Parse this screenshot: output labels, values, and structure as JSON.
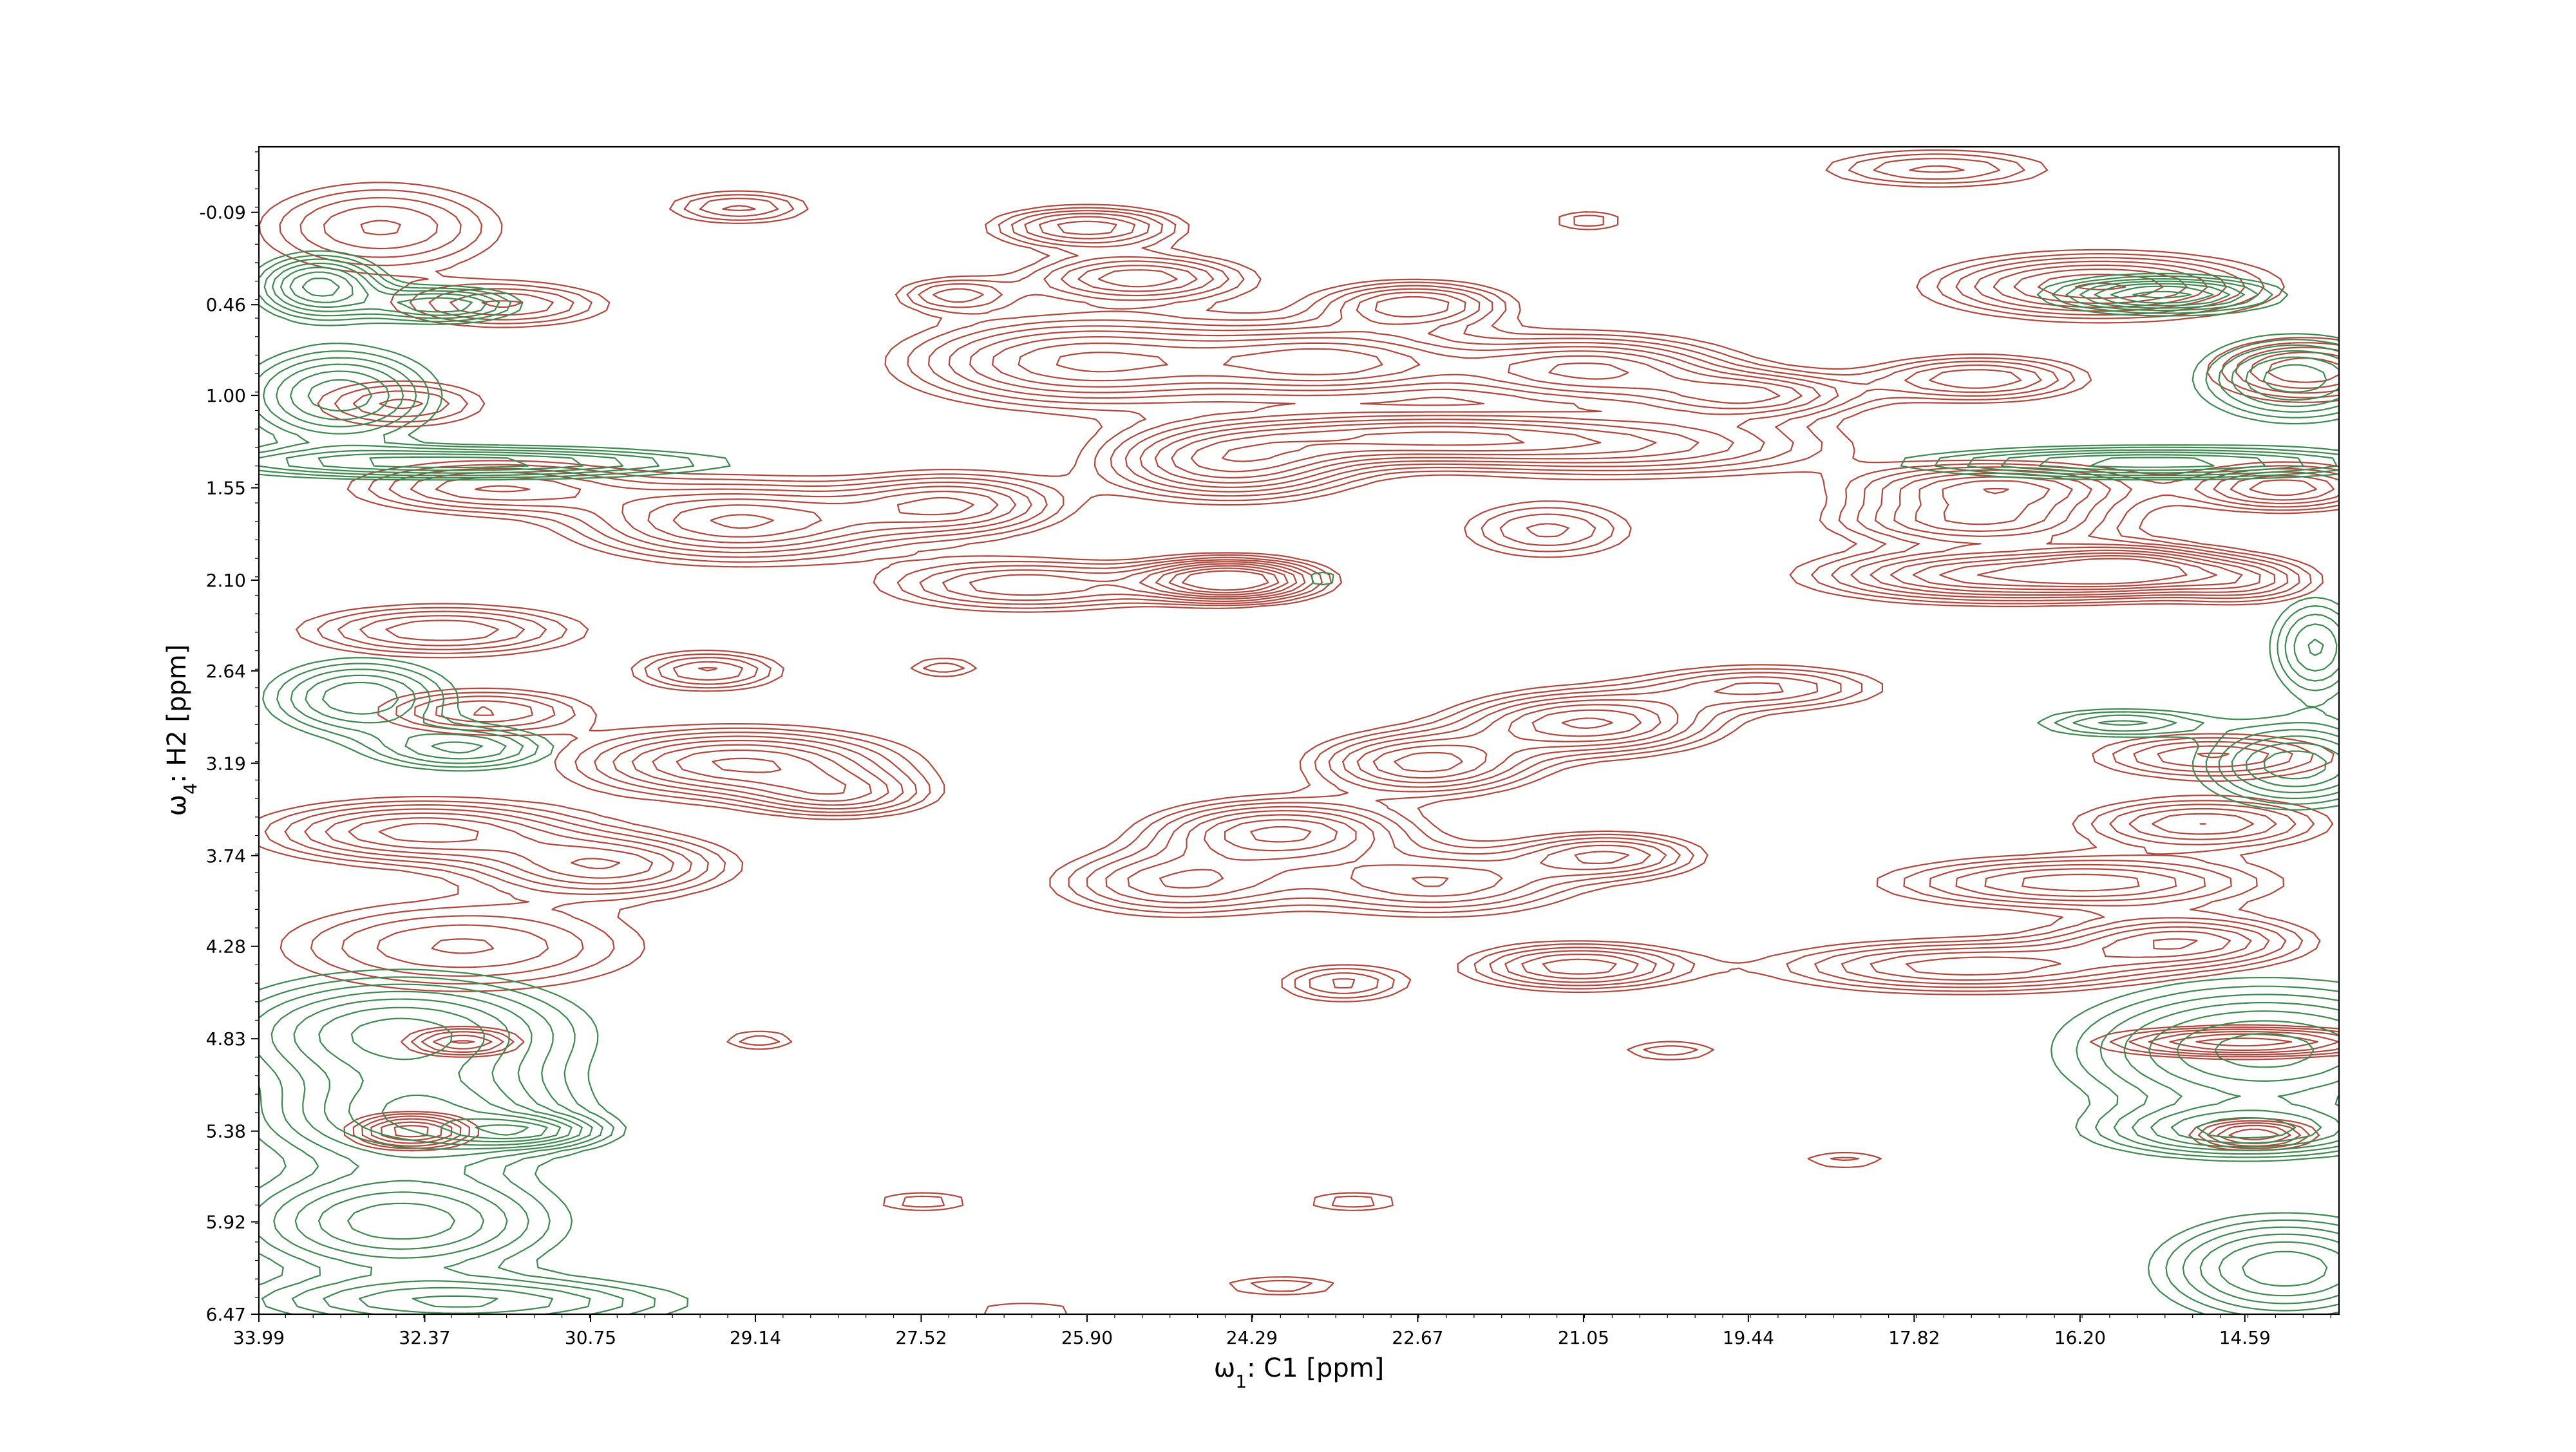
{
  "chart_data": {
    "type": "contour",
    "title": "",
    "x_axis": {
      "label_prefix": "ω",
      "label_sub": "1",
      "label_suffix": ": C1 [ppm]",
      "ticks": [
        "33.99",
        "32.37",
        "30.75",
        "29.14",
        "27.52",
        "25.90",
        "24.29",
        "22.67",
        "21.05",
        "19.44",
        "17.82",
        "16.20",
        "14.59"
      ],
      "tick_values": [
        33.99,
        32.37,
        30.75,
        29.14,
        27.52,
        25.9,
        24.29,
        22.67,
        21.05,
        19.44,
        17.82,
        16.2,
        14.59
      ],
      "range": [
        33.99,
        13.67
      ],
      "reversed": true
    },
    "y_axis": {
      "label_prefix": "ω",
      "label_sub": "4",
      "label_suffix": ": H2 [ppm]",
      "ticks": [
        "-0.09",
        "0.46",
        "1.00",
        "1.55",
        "2.10",
        "2.64",
        "3.19",
        "3.74",
        "4.28",
        "4.83",
        "5.38",
        "5.92",
        "6.47"
      ],
      "tick_values": [
        -0.09,
        0.46,
        1.0,
        1.55,
        2.1,
        2.64,
        3.19,
        3.74,
        4.28,
        4.83,
        5.38,
        5.92,
        6.47
      ],
      "range": [
        -0.48,
        6.47
      ],
      "reversed": true
    },
    "grid": false,
    "series": [
      {
        "sign": "positive",
        "color": "#b5463c"
      },
      {
        "sign": "negative",
        "color": "#3d8a4e"
      }
    ],
    "peaks": [
      {
        "x": 24.5,
        "y": 2.1,
        "sx": 0.55,
        "sy": 0.08,
        "a": 1.4,
        "s": 1
      },
      {
        "x": 17.0,
        "y": 2.07,
        "sx": 1.1,
        "sy": 0.1,
        "a": 1.1,
        "s": 1
      },
      {
        "x": 15.7,
        "y": 2.03,
        "sx": 0.6,
        "sy": 0.09,
        "a": 0.9,
        "s": 1
      },
      {
        "x": 26.5,
        "y": 2.13,
        "sx": 0.9,
        "sy": 0.1,
        "a": 0.7,
        "s": 1
      },
      {
        "x": 29.3,
        "y": 3.19,
        "sx": 1.0,
        "sy": 0.13,
        "a": 1.0,
        "s": 1
      },
      {
        "x": 28.3,
        "y": 3.38,
        "sx": 0.6,
        "sy": 0.09,
        "a": 0.6,
        "s": 1
      },
      {
        "x": 29.6,
        "y": 2.64,
        "sx": 0.5,
        "sy": 0.08,
        "a": 0.6,
        "s": 1
      },
      {
        "x": 24.0,
        "y": 3.6,
        "sx": 0.8,
        "sy": 0.12,
        "a": 1.0,
        "s": 1
      },
      {
        "x": 22.6,
        "y": 3.19,
        "sx": 0.7,
        "sy": 0.12,
        "a": 0.9,
        "s": 1
      },
      {
        "x": 21.0,
        "y": 2.95,
        "sx": 0.8,
        "sy": 0.12,
        "a": 1.0,
        "s": 1
      },
      {
        "x": 19.3,
        "y": 2.74,
        "sx": 0.8,
        "sy": 0.09,
        "a": 0.6,
        "s": 1
      },
      {
        "x": 25.0,
        "y": 3.9,
        "sx": 0.8,
        "sy": 0.13,
        "a": 0.7,
        "s": 1
      },
      {
        "x": 22.5,
        "y": 3.9,
        "sx": 0.9,
        "sy": 0.13,
        "a": 0.7,
        "s": 1
      },
      {
        "x": 20.8,
        "y": 3.74,
        "sx": 0.6,
        "sy": 0.09,
        "a": 0.7,
        "s": 1
      },
      {
        "x": 21.1,
        "y": 4.4,
        "sx": 0.7,
        "sy": 0.09,
        "a": 0.8,
        "s": 1
      },
      {
        "x": 23.4,
        "y": 4.5,
        "sx": 0.45,
        "sy": 0.08,
        "a": 0.5,
        "s": 1
      },
      {
        "x": 29.3,
        "y": 1.75,
        "sx": 1.0,
        "sy": 0.15,
        "a": 1.0,
        "s": 1
      },
      {
        "x": 27.2,
        "y": 1.65,
        "sx": 0.7,
        "sy": 0.12,
        "a": 0.8,
        "s": 1
      },
      {
        "x": 31.7,
        "y": 1.55,
        "sx": 0.9,
        "sy": 0.1,
        "a": 0.7,
        "s": 1
      },
      {
        "x": 24.5,
        "y": 1.4,
        "sx": 0.8,
        "sy": 0.14,
        "a": 1.0,
        "s": 1
      },
      {
        "x": 25.9,
        "y": 0.8,
        "sx": 1.1,
        "sy": 0.17,
        "a": 1.0,
        "s": 1
      },
      {
        "x": 23.5,
        "y": 0.8,
        "sx": 0.9,
        "sy": 0.14,
        "a": 1.0,
        "s": 1
      },
      {
        "x": 21.0,
        "y": 0.85,
        "sx": 0.9,
        "sy": 0.13,
        "a": 1.0,
        "s": 1
      },
      {
        "x": 19.4,
        "y": 1.0,
        "sx": 0.7,
        "sy": 0.09,
        "a": 0.8,
        "s": 1
      },
      {
        "x": 17.2,
        "y": 0.9,
        "sx": 0.7,
        "sy": 0.09,
        "a": 0.7,
        "s": 1
      },
      {
        "x": 22.7,
        "y": 1.25,
        "sx": 1.2,
        "sy": 0.1,
        "a": 1.0,
        "s": 1
      },
      {
        "x": 20.5,
        "y": 1.3,
        "sx": 1.3,
        "sy": 0.12,
        "a": 0.7,
        "s": 1
      },
      {
        "x": 21.4,
        "y": 1.8,
        "sx": 0.6,
        "sy": 0.12,
        "a": 0.5,
        "s": 1
      },
      {
        "x": 17.0,
        "y": 1.55,
        "sx": 0.9,
        "sy": 0.09,
        "a": 0.9,
        "s": 1
      },
      {
        "x": 17.2,
        "y": 1.75,
        "sx": 0.9,
        "sy": 0.09,
        "a": 0.8,
        "s": 1
      },
      {
        "x": 25.9,
        "y": 0.0,
        "sx": 0.6,
        "sy": 0.08,
        "a": 0.8,
        "s": 1
      },
      {
        "x": 25.4,
        "y": 0.3,
        "sx": 0.7,
        "sy": 0.09,
        "a": 0.8,
        "s": 1
      },
      {
        "x": 27.2,
        "y": 0.4,
        "sx": 0.4,
        "sy": 0.07,
        "a": 0.5,
        "s": 1
      },
      {
        "x": 22.7,
        "y": 0.46,
        "sx": 0.6,
        "sy": 0.09,
        "a": 0.8,
        "s": 1
      },
      {
        "x": 29.3,
        "y": -0.12,
        "sx": 0.5,
        "sy": 0.07,
        "a": 0.5,
        "s": 1
      },
      {
        "x": 16.0,
        "y": 0.35,
        "sx": 1.0,
        "sy": 0.12,
        "a": 1.0,
        "s": 1
      },
      {
        "x": 17.6,
        "y": -0.35,
        "sx": 0.8,
        "sy": 0.08,
        "a": 0.5,
        "s": 1
      },
      {
        "x": 31.8,
        "y": 2.88,
        "sx": 0.7,
        "sy": 0.09,
        "a": 0.6,
        "s": 1
      },
      {
        "x": 32.2,
        "y": 2.4,
        "sx": 0.9,
        "sy": 0.1,
        "a": 0.7,
        "s": 1
      },
      {
        "x": 32.4,
        "y": 3.6,
        "sx": 1.0,
        "sy": 0.12,
        "a": 0.9,
        "s": 1
      },
      {
        "x": 30.6,
        "y": 3.8,
        "sx": 0.8,
        "sy": 0.12,
        "a": 0.8,
        "s": 1
      },
      {
        "x": 32.0,
        "y": 4.28,
        "sx": 1.2,
        "sy": 0.18,
        "a": 0.6,
        "s": 1
      },
      {
        "x": 32.6,
        "y": 1.05,
        "sx": 0.6,
        "sy": 0.1,
        "a": 0.5,
        "s": 1
      },
      {
        "x": 32.8,
        "y": 0.0,
        "sx": 0.8,
        "sy": 0.18,
        "a": 0.6,
        "s": 1
      },
      {
        "x": 31.6,
        "y": 0.46,
        "sx": 0.7,
        "sy": 0.09,
        "a": 0.6,
        "s": 1
      },
      {
        "x": 32.5,
        "y": 5.38,
        "sx": 0.4,
        "sy": 0.07,
        "a": 0.8,
        "s": 1
      },
      {
        "x": 32.0,
        "y": 4.85,
        "sx": 0.4,
        "sy": 0.06,
        "a": 0.6,
        "s": 1
      },
      {
        "x": 16.2,
        "y": 3.9,
        "sx": 1.2,
        "sy": 0.1,
        "a": 0.8,
        "s": 1
      },
      {
        "x": 17.3,
        "y": 4.4,
        "sx": 1.2,
        "sy": 0.1,
        "a": 0.8,
        "s": 1
      },
      {
        "x": 15.2,
        "y": 4.25,
        "sx": 0.8,
        "sy": 0.1,
        "a": 0.8,
        "s": 1
      },
      {
        "x": 15.0,
        "y": 3.55,
        "sx": 0.8,
        "sy": 0.1,
        "a": 0.7,
        "s": 1
      },
      {
        "x": 14.9,
        "y": 3.15,
        "sx": 0.8,
        "sy": 0.09,
        "a": 0.6,
        "s": 1
      },
      {
        "x": 14.0,
        "y": 0.85,
        "sx": 0.6,
        "sy": 0.12,
        "a": 0.7,
        "s": 1
      },
      {
        "x": 14.2,
        "y": 1.55,
        "sx": 0.6,
        "sy": 0.09,
        "a": 0.8,
        "s": 1
      },
      {
        "x": 14.6,
        "y": 2.1,
        "sx": 0.5,
        "sy": 0.09,
        "a": 0.6,
        "s": 1
      },
      {
        "x": 14.5,
        "y": 5.4,
        "sx": 0.4,
        "sy": 0.06,
        "a": 0.7,
        "s": 1
      },
      {
        "x": 14.6,
        "y": 4.85,
        "sx": 0.9,
        "sy": 0.06,
        "a": 0.8,
        "s": 1
      },
      {
        "x": 27.3,
        "y": 2.62,
        "sx": 0.3,
        "sy": 0.05,
        "a": 0.35,
        "s": 1
      },
      {
        "x": 27.5,
        "y": 5.8,
        "sx": 0.4,
        "sy": 0.05,
        "a": 0.35,
        "s": 1
      },
      {
        "x": 23.3,
        "y": 5.8,
        "sx": 0.4,
        "sy": 0.05,
        "a": 0.35,
        "s": 1
      },
      {
        "x": 20.2,
        "y": 4.9,
        "sx": 0.4,
        "sy": 0.05,
        "a": 0.35,
        "s": 1
      },
      {
        "x": 29.1,
        "y": 4.84,
        "sx": 0.3,
        "sy": 0.05,
        "a": 0.35,
        "s": 1
      },
      {
        "x": 21.0,
        "y": -0.04,
        "sx": 0.3,
        "sy": 0.05,
        "a": 0.35,
        "s": 1
      },
      {
        "x": 24.0,
        "y": 6.3,
        "sx": 0.5,
        "sy": 0.05,
        "a": 0.35,
        "s": 1
      },
      {
        "x": 26.5,
        "y": 6.45,
        "sx": 0.5,
        "sy": 0.05,
        "a": 0.3,
        "s": 1
      },
      {
        "x": 18.5,
        "y": 5.55,
        "sx": 0.4,
        "sy": 0.05,
        "a": 0.3,
        "s": 1
      },
      {
        "x": 33.4,
        "y": 0.35,
        "sx": 0.4,
        "sy": 0.12,
        "a": 0.9,
        "s": -1
      },
      {
        "x": 32.2,
        "y": 0.46,
        "sx": 0.5,
        "sy": 0.07,
        "a": 0.7,
        "s": -1
      },
      {
        "x": 33.2,
        "y": 1.0,
        "sx": 0.6,
        "sy": 0.18,
        "a": 0.8,
        "s": -1
      },
      {
        "x": 32.0,
        "y": 1.4,
        "sx": 1.6,
        "sy": 0.06,
        "a": 0.8,
        "s": -1
      },
      {
        "x": 33.0,
        "y": 2.8,
        "sx": 0.6,
        "sy": 0.15,
        "a": 0.7,
        "s": -1
      },
      {
        "x": 32.0,
        "y": 3.1,
        "sx": 0.6,
        "sy": 0.09,
        "a": 0.6,
        "s": -1
      },
      {
        "x": 32.6,
        "y": 4.8,
        "sx": 1.1,
        "sy": 0.22,
        "a": 0.9,
        "s": -1
      },
      {
        "x": 32.4,
        "y": 5.3,
        "sx": 1.0,
        "sy": 0.18,
        "a": 0.8,
        "s": -1
      },
      {
        "x": 31.4,
        "y": 5.38,
        "sx": 0.5,
        "sy": 0.06,
        "a": 0.7,
        "s": -1
      },
      {
        "x": 32.6,
        "y": 5.92,
        "sx": 1.0,
        "sy": 0.2,
        "a": 0.8,
        "s": -1
      },
      {
        "x": 32.0,
        "y": 6.4,
        "sx": 1.4,
        "sy": 0.1,
        "a": 0.7,
        "s": -1
      },
      {
        "x": 15.4,
        "y": 0.4,
        "sx": 0.7,
        "sy": 0.07,
        "a": 0.9,
        "s": -1
      },
      {
        "x": 14.1,
        "y": 0.9,
        "sx": 0.6,
        "sy": 0.16,
        "a": 0.8,
        "s": -1
      },
      {
        "x": 15.5,
        "y": 1.4,
        "sx": 1.5,
        "sy": 0.06,
        "a": 0.8,
        "s": -1
      },
      {
        "x": 14.1,
        "y": 3.2,
        "sx": 0.6,
        "sy": 0.16,
        "a": 0.8,
        "s": -1
      },
      {
        "x": 15.8,
        "y": 2.95,
        "sx": 0.6,
        "sy": 0.06,
        "a": 0.5,
        "s": -1
      },
      {
        "x": 14.4,
        "y": 4.9,
        "sx": 1.2,
        "sy": 0.25,
        "a": 0.9,
        "s": -1
      },
      {
        "x": 14.6,
        "y": 5.38,
        "sx": 0.9,
        "sy": 0.1,
        "a": 0.8,
        "s": -1
      },
      {
        "x": 14.2,
        "y": 6.2,
        "sx": 0.8,
        "sy": 0.2,
        "a": 0.8,
        "s": -1
      },
      {
        "x": 13.9,
        "y": 2.5,
        "sx": 0.3,
        "sy": 0.2,
        "a": 0.6,
        "s": -1
      },
      {
        "x": 23.6,
        "y": 2.09,
        "sx": 0.15,
        "sy": 0.04,
        "a": 0.3,
        "s": -1
      }
    ],
    "contour_levels": [
      0.2,
      0.28,
      0.37,
      0.47,
      0.58,
      0.7,
      0.83,
      0.97,
      1.12
    ]
  }
}
